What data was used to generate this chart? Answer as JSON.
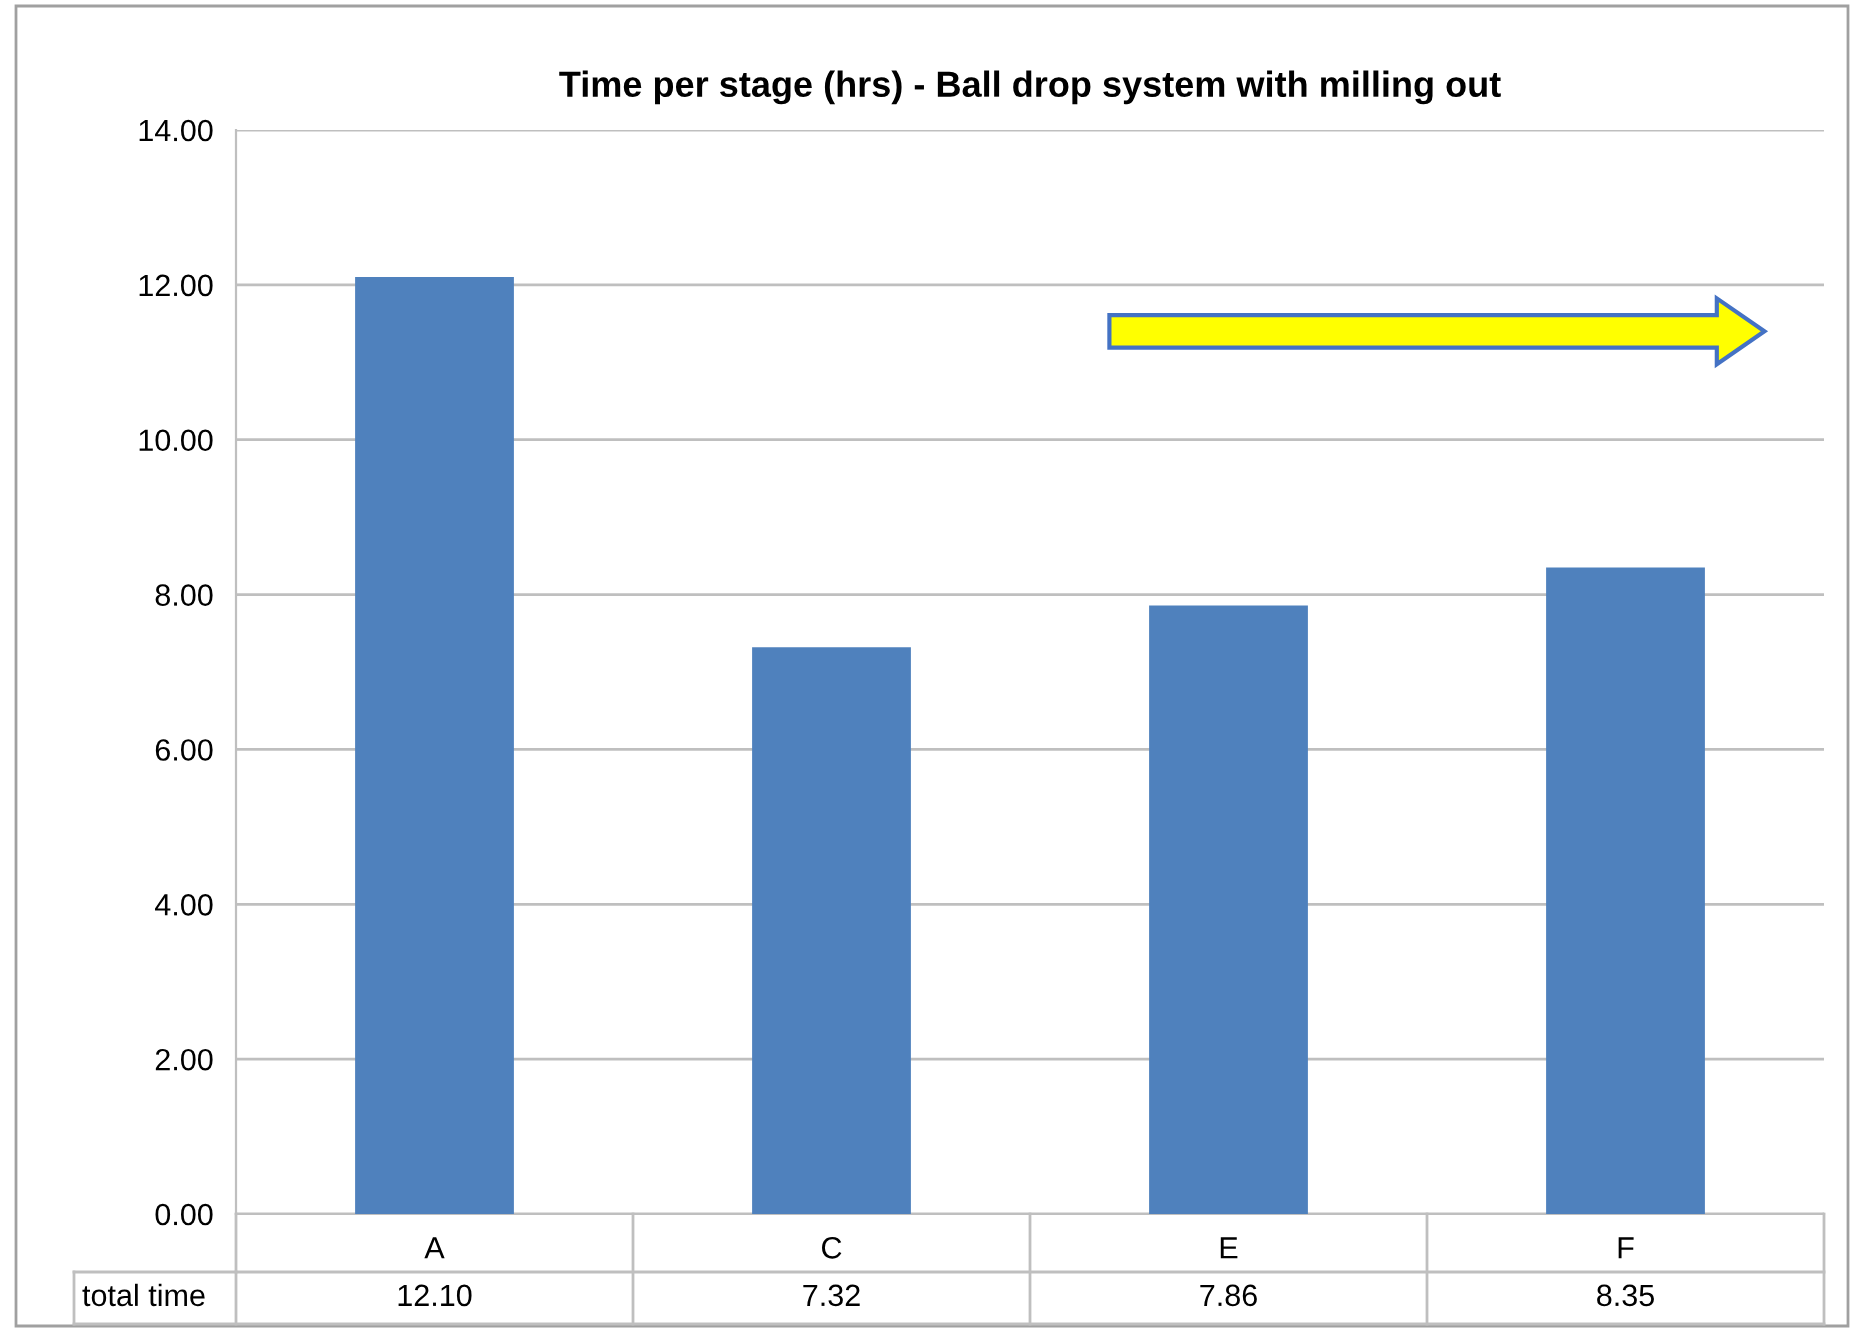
{
  "chart_data": {
    "type": "bar",
    "title": "Time per stage (hrs) - Ball drop system with milling out",
    "categories": [
      "A",
      "C",
      "E",
      "F"
    ],
    "series": [
      {
        "name": "total time",
        "color": "#4f81bd",
        "values": [
          12.1,
          7.32,
          7.86,
          8.35
        ],
        "value_labels": [
          "12.10",
          "7.32",
          "7.86",
          "8.35"
        ]
      }
    ],
    "ylim": [
      0,
      14
    ],
    "yticks": [
      {
        "value": 0,
        "label": "0.00"
      },
      {
        "value": 2,
        "label": "2.00"
      },
      {
        "value": 4,
        "label": "4.00"
      },
      {
        "value": 6,
        "label": "6.00"
      },
      {
        "value": 8,
        "label": "8.00"
      },
      {
        "value": 10,
        "label": "10.00"
      },
      {
        "value": 12,
        "label": "12.00"
      },
      {
        "value": 14,
        "label": "14.00"
      }
    ],
    "grid": "y"
  }
}
